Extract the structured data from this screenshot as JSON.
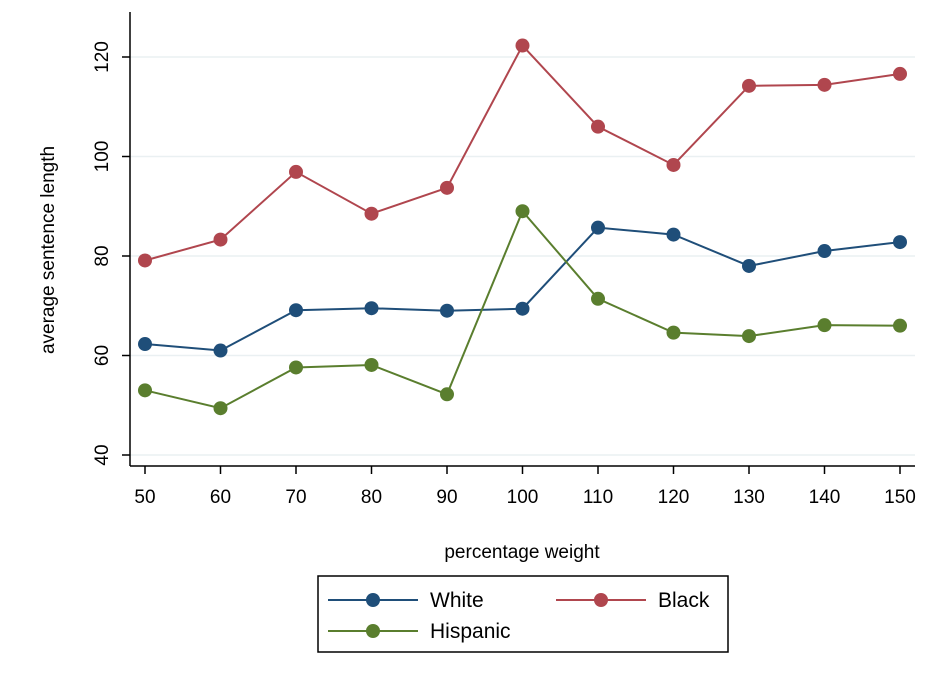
{
  "chart_data": {
    "type": "line",
    "title": "",
    "xlabel": "percentage weight",
    "ylabel": "average sentence length",
    "x": [
      50,
      60,
      70,
      80,
      90,
      100,
      110,
      120,
      130,
      140,
      150
    ],
    "xlim": [
      50,
      150
    ],
    "ylim": [
      40,
      120
    ],
    "xticks": [
      50,
      60,
      70,
      80,
      90,
      100,
      110,
      120,
      130,
      140,
      150
    ],
    "yticks": [
      40,
      60,
      80,
      100,
      120
    ],
    "grid": "horizontal",
    "legend_position": "bottom",
    "series": [
      {
        "name": "White",
        "color": "#1f4e79",
        "values": [
          62.3,
          61.0,
          69.1,
          69.5,
          69.0,
          69.4,
          85.7,
          84.3,
          78.0,
          81.0,
          82.8
        ]
      },
      {
        "name": "Black",
        "color": "#b0464e",
        "values": [
          79.1,
          83.3,
          96.9,
          88.5,
          93.7,
          122.3,
          106.0,
          98.3,
          114.2,
          114.4,
          116.6
        ]
      },
      {
        "name": "Hispanic",
        "color": "#5a7e2e",
        "values": [
          53.0,
          49.4,
          57.6,
          58.1,
          52.2,
          89.0,
          71.4,
          64.6,
          63.9,
          66.1,
          66.0
        ]
      }
    ]
  }
}
